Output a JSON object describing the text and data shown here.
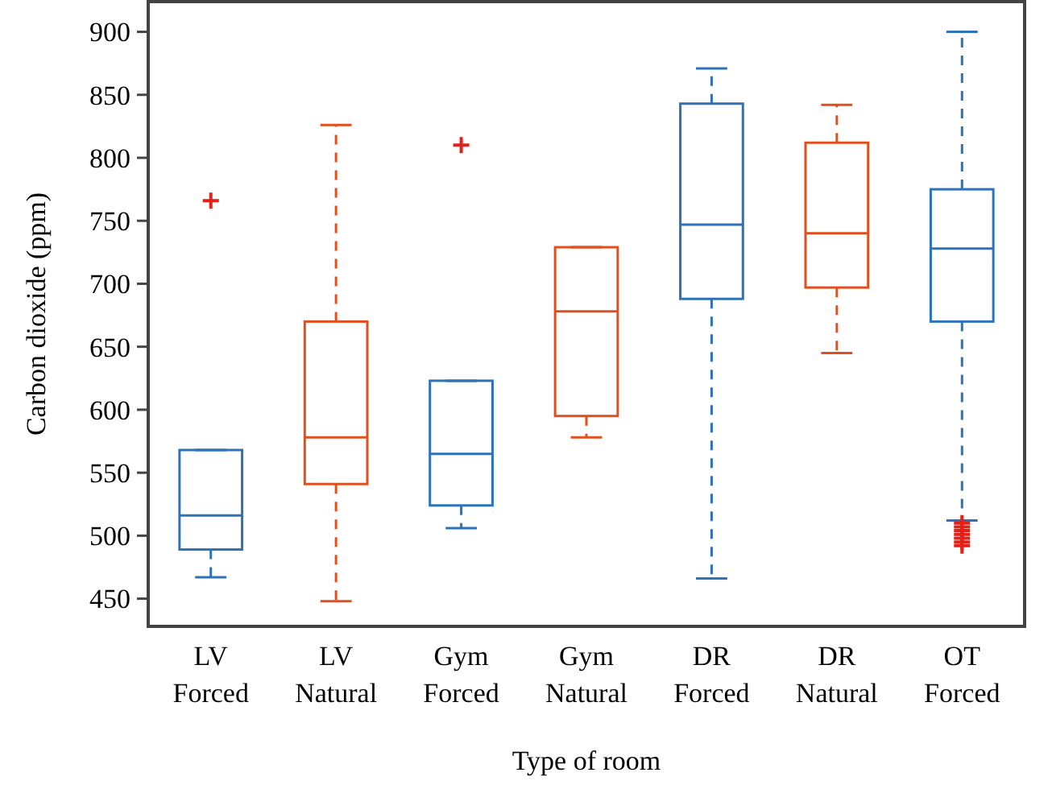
{
  "chart_data": {
    "type": "box",
    "xlabel": "Type of room",
    "ylabel": "Carbon dioxide (ppm)",
    "categories": [
      "LV Forced",
      "LV Natural",
      "Gym Forced",
      "Gym Natural",
      "DR Forced",
      "DR Natural",
      "OT Forced"
    ],
    "colors": [
      "#2e72b8",
      "#e0501e",
      "#2e72b8",
      "#e0501e",
      "#2e72b8",
      "#e0501e",
      "#2e72b8"
    ],
    "boxes": [
      {
        "low": 467,
        "q1": 489,
        "median": 516,
        "q3": 568,
        "high": 568,
        "outliers": [
          766
        ]
      },
      {
        "low": 448,
        "q1": 541,
        "median": 578,
        "q3": 670,
        "high": 826
      },
      {
        "low": 506,
        "q1": 524,
        "median": 565,
        "q3": 623,
        "high": 623,
        "outliers": [
          810
        ]
      },
      {
        "low": 578,
        "q1": 595,
        "median": 678,
        "q3": 729,
        "high": 729
      },
      {
        "low": 466,
        "q1": 688,
        "median": 747,
        "q3": 843,
        "high": 871
      },
      {
        "low": 645,
        "q1": 697,
        "median": 740,
        "q3": 812,
        "high": 842
      },
      {
        "low": 512,
        "q1": 670,
        "median": 728,
        "q3": 775,
        "high": 900,
        "outliers": [
          510,
          507,
          504,
          501,
          498,
          495,
          492
        ]
      }
    ],
    "marker": "cross",
    "line_style": "dashed",
    "ylim": [
      428,
      924
    ],
    "yticks": [
      450,
      500,
      550,
      600,
      650,
      700,
      750,
      800,
      850,
      900
    ]
  }
}
